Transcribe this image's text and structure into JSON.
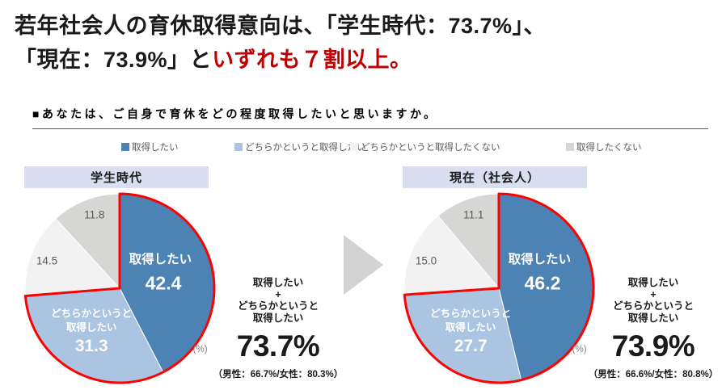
{
  "title": {
    "line1": "若年社会人の育休取得意向は、「学生時代：73.7%」、",
    "line2_black": "「現在：73.9%」と",
    "line2_red": "いずれも７割以上。",
    "accent_color": "#c00000"
  },
  "question": {
    "text": "■あなたは、ご自身で育休をどの程度取得したいと思いますか。"
  },
  "legend": {
    "items": [
      {
        "label": "取得したい",
        "color": "#4d82b4"
      },
      {
        "label": "どちらかというと取得したい",
        "color": "#aac4e2"
      },
      {
        "label": "どちらかというと取得したくない",
        "color": "#f2f2f2"
      },
      {
        "label": "取得したくない",
        "color": "#d6d6d4"
      }
    ]
  },
  "chart_data": {
    "type": "pie",
    "categories": [
      "取得したい",
      "どちらかというと取得したい",
      "どちらかというと取得したくない",
      "取得したくない"
    ],
    "colors": [
      "#4d82b4",
      "#aac4e2",
      "#f2f2f2",
      "#d6d6d4"
    ],
    "highlight_outline_color": "#ff0000",
    "unit_label": "(%)",
    "slice2_label_lines": [
      "どちらかというと",
      "取得したい"
    ],
    "summary_label_lines": [
      "取得したい",
      "+",
      "どちらかというと",
      "取得したい"
    ],
    "charts": [
      {
        "title": "学生時代",
        "values": [
          42.4,
          31.3,
          14.5,
          11.8
        ],
        "value_labels": [
          "42.4",
          "31.3",
          "14.5",
          "11.8"
        ],
        "highlight_total": "73.7%",
        "gender_note": "（男性：66.7%/女性：80.3%）"
      },
      {
        "title": "現在（社会人）",
        "values": [
          46.2,
          27.7,
          15.0,
          11.1
        ],
        "value_labels": [
          "46.2",
          "27.7",
          "15.0",
          "11.1"
        ],
        "highlight_total": "73.9%",
        "gender_note": "（男性：66.6%/女性：80.8%）"
      }
    ]
  }
}
